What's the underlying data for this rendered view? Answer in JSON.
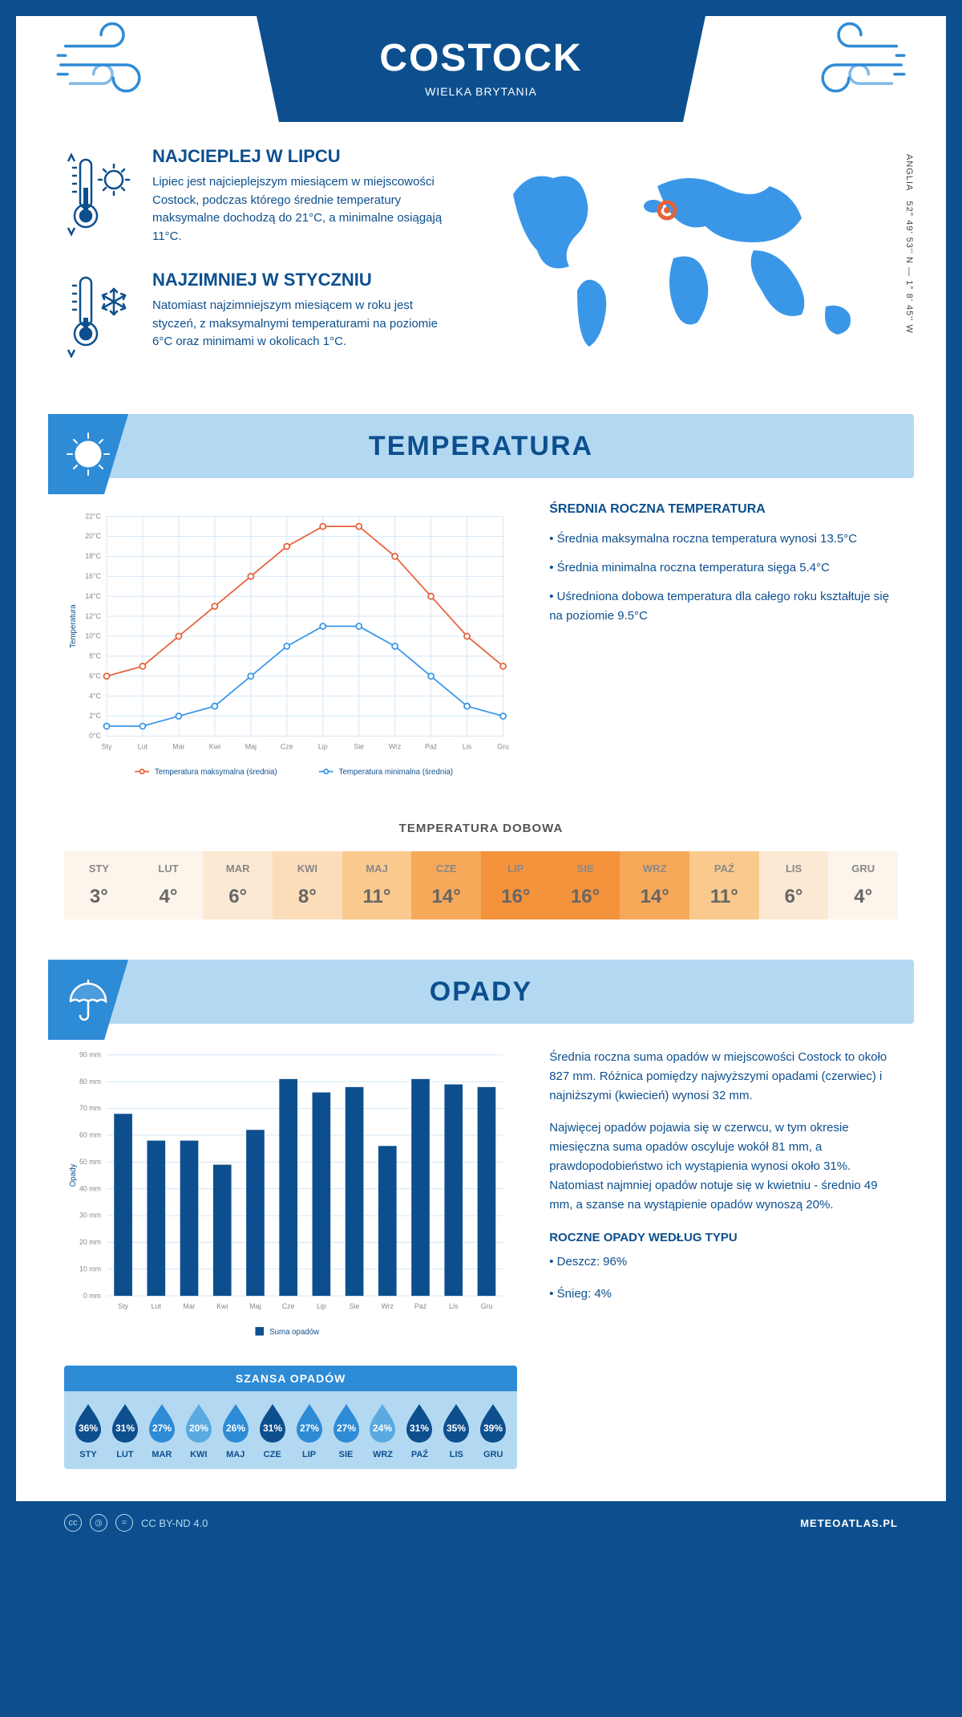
{
  "header": {
    "city": "COSTOCK",
    "country": "WIELKA BRYTANIA"
  },
  "coords": {
    "line": "52° 49' 53'' N — 1° 8' 45'' W",
    "region": "ANGLIA"
  },
  "facts": {
    "hot": {
      "title": "NAJCIEPLEJ W LIPCU",
      "text": "Lipiec jest najcieplejszym miesiącem w miejscowości Costock, podczas którego średnie temperatury maksymalne dochodzą do 21°C, a minimalne osiągają 11°C."
    },
    "cold": {
      "title": "NAJZIMNIEJ W STYCZNIU",
      "text": "Natomiast najzimniejszym miesiącem w roku jest styczeń, z maksymalnymi temperaturami na poziomie 6°C oraz minimami w okolicach 1°C."
    }
  },
  "temperature": {
    "section_title": "TEMPERATURA",
    "chart": {
      "type": "line",
      "months": [
        "Sty",
        "Lut",
        "Mar",
        "Kwi",
        "Maj",
        "Cze",
        "Lip",
        "Sie",
        "Wrz",
        "Paź",
        "Lis",
        "Gru"
      ],
      "y_label": "Temperatura",
      "y_ticks": [
        0,
        2,
        4,
        6,
        8,
        10,
        12,
        14,
        16,
        18,
        20,
        22
      ],
      "y_tick_suffix": "°C",
      "ylim": [
        0,
        22
      ],
      "series": [
        {
          "name": "Temperatura maksymalna (średnia)",
          "color": "#e8623a",
          "values": [
            6,
            7,
            10,
            13,
            16,
            19,
            21,
            21,
            18,
            14,
            10,
            7
          ]
        },
        {
          "name": "Temperatura minimalna (średnia)",
          "color": "#3a97e8",
          "values": [
            1,
            1,
            2,
            3,
            6,
            9,
            11,
            11,
            9,
            6,
            3,
            2
          ]
        }
      ],
      "grid_color": "#d0e4f5",
      "background": "#ffffff",
      "marker": "circle",
      "marker_size": 4,
      "line_width": 2
    },
    "annual": {
      "title": "ŚREDNIA ROCZNA TEMPERATURA",
      "bullets": [
        "Średnia maksymalna roczna temperatura wynosi 13.5°C",
        "Średnia minimalna roczna temperatura sięga 5.4°C",
        "Uśredniona dobowa temperatura dla całego roku kształtuje się na poziomie 9.5°C"
      ]
    },
    "daily": {
      "title": "TEMPERATURA DOBOWA",
      "months": [
        "STY",
        "LUT",
        "MAR",
        "KWI",
        "MAJ",
        "CZE",
        "LIP",
        "SIE",
        "WRZ",
        "PAŹ",
        "LIS",
        "GRU"
      ],
      "values": [
        "3°",
        "4°",
        "6°",
        "8°",
        "11°",
        "14°",
        "16°",
        "16°",
        "14°",
        "11°",
        "6°",
        "4°"
      ],
      "bg_colors": [
        "#fdf5eb",
        "#fdf5eb",
        "#fce9d3",
        "#fbddb9",
        "#f9c98e",
        "#f7a95a",
        "#f5933c",
        "#f5933c",
        "#f7a95a",
        "#f9c98e",
        "#fce9d3",
        "#fdf5eb"
      ]
    }
  },
  "precipitation": {
    "section_title": "OPADY",
    "chart": {
      "type": "bar",
      "months": [
        "Sty",
        "Lut",
        "Mar",
        "Kwi",
        "Maj",
        "Cze",
        "Lip",
        "Sie",
        "Wrz",
        "Paź",
        "Lis",
        "Gru"
      ],
      "y_label": "Opady",
      "y_ticks": [
        0,
        10,
        20,
        30,
        40,
        50,
        60,
        70,
        80,
        90
      ],
      "y_tick_suffix": " mm",
      "ylim": [
        0,
        90
      ],
      "values": [
        68,
        58,
        58,
        49,
        62,
        81,
        76,
        78,
        56,
        81,
        79,
        78
      ],
      "bar_color": "#0d4f8e",
      "grid_color": "#d0e4f5",
      "bar_width": 0.55,
      "legend": "Suma opadów"
    },
    "text1": "Średnia roczna suma opadów w miejscowości Costock to około 827 mm. Różnica pomiędzy najwyższymi opadami (czerwiec) i najniższymi (kwiecień) wynosi 32 mm.",
    "text2": "Najwięcej opadów pojawia się w czerwcu, w tym okresie miesięczna suma opadów oscyluje wokół 81 mm, a prawdopodobieństwo ich wystąpienia wynosi około 31%. Natomiast najmniej opadów notuje się w kwietniu - średnio 49 mm, a szanse na wystąpienie opadów wynoszą 20%.",
    "byType": {
      "title": "ROCZNE OPADY WEDŁUG TYPU",
      "bullets": [
        "Deszcz: 96%",
        "Śnieg: 4%"
      ]
    },
    "chance": {
      "title": "SZANSA OPADÓW",
      "months": [
        "STY",
        "LUT",
        "MAR",
        "KWI",
        "MAJ",
        "CZE",
        "LIP",
        "SIE",
        "WRZ",
        "PAŹ",
        "LIS",
        "GRU"
      ],
      "pct": [
        "36%",
        "31%",
        "27%",
        "20%",
        "26%",
        "31%",
        "27%",
        "27%",
        "24%",
        "31%",
        "35%",
        "39%"
      ],
      "colors": [
        "#0d4f8e",
        "#0d4f8e",
        "#2e8bd6",
        "#5aa9e0",
        "#2e8bd6",
        "#0d4f8e",
        "#2e8bd6",
        "#2e8bd6",
        "#5aa9e0",
        "#0d4f8e",
        "#0d4f8e",
        "#0d4f8e"
      ]
    }
  },
  "footer": {
    "license": "CC BY-ND 4.0",
    "site": "METEOATLAS.PL"
  }
}
